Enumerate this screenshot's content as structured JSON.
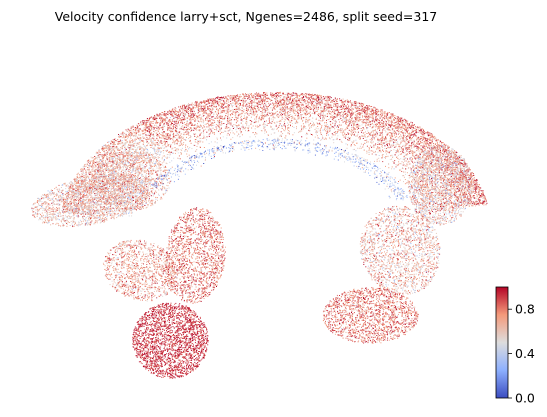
{
  "chart_data": {
    "type": "scatter",
    "title": "Velocity confidence larry+sct, Ngenes=2486, split seed=317",
    "xlabel": "",
    "ylabel": "",
    "axes_visible": false,
    "grid": false,
    "point_count_approx": 24000,
    "colorbar": {
      "colormap": "coolwarm",
      "range": [
        0.0,
        1.0
      ],
      "ticks": [
        0.0,
        0.4,
        0.8
      ],
      "tick_labels": [
        "0.0",
        "0.4",
        "0.8"
      ],
      "placement": "bottom-right"
    },
    "colors": {
      "low": "#3b4cc0",
      "mid": "#dddddd",
      "high": "#b40426"
    },
    "regions": [
      {
        "name": "top-arc",
        "mean_confidence": 0.82
      },
      {
        "name": "left-arm",
        "mean_confidence": 0.62
      },
      {
        "name": "left-lower-lobe",
        "mean_confidence": 0.72
      },
      {
        "name": "bottom-left-cluster",
        "mean_confidence": 0.93
      },
      {
        "name": "right-arm",
        "mean_confidence": 0.6
      },
      {
        "name": "bottom-right-cluster",
        "mean_confidence": 0.8
      },
      {
        "name": "inner-sparse-rim",
        "mean_confidence": 0.35
      }
    ]
  }
}
